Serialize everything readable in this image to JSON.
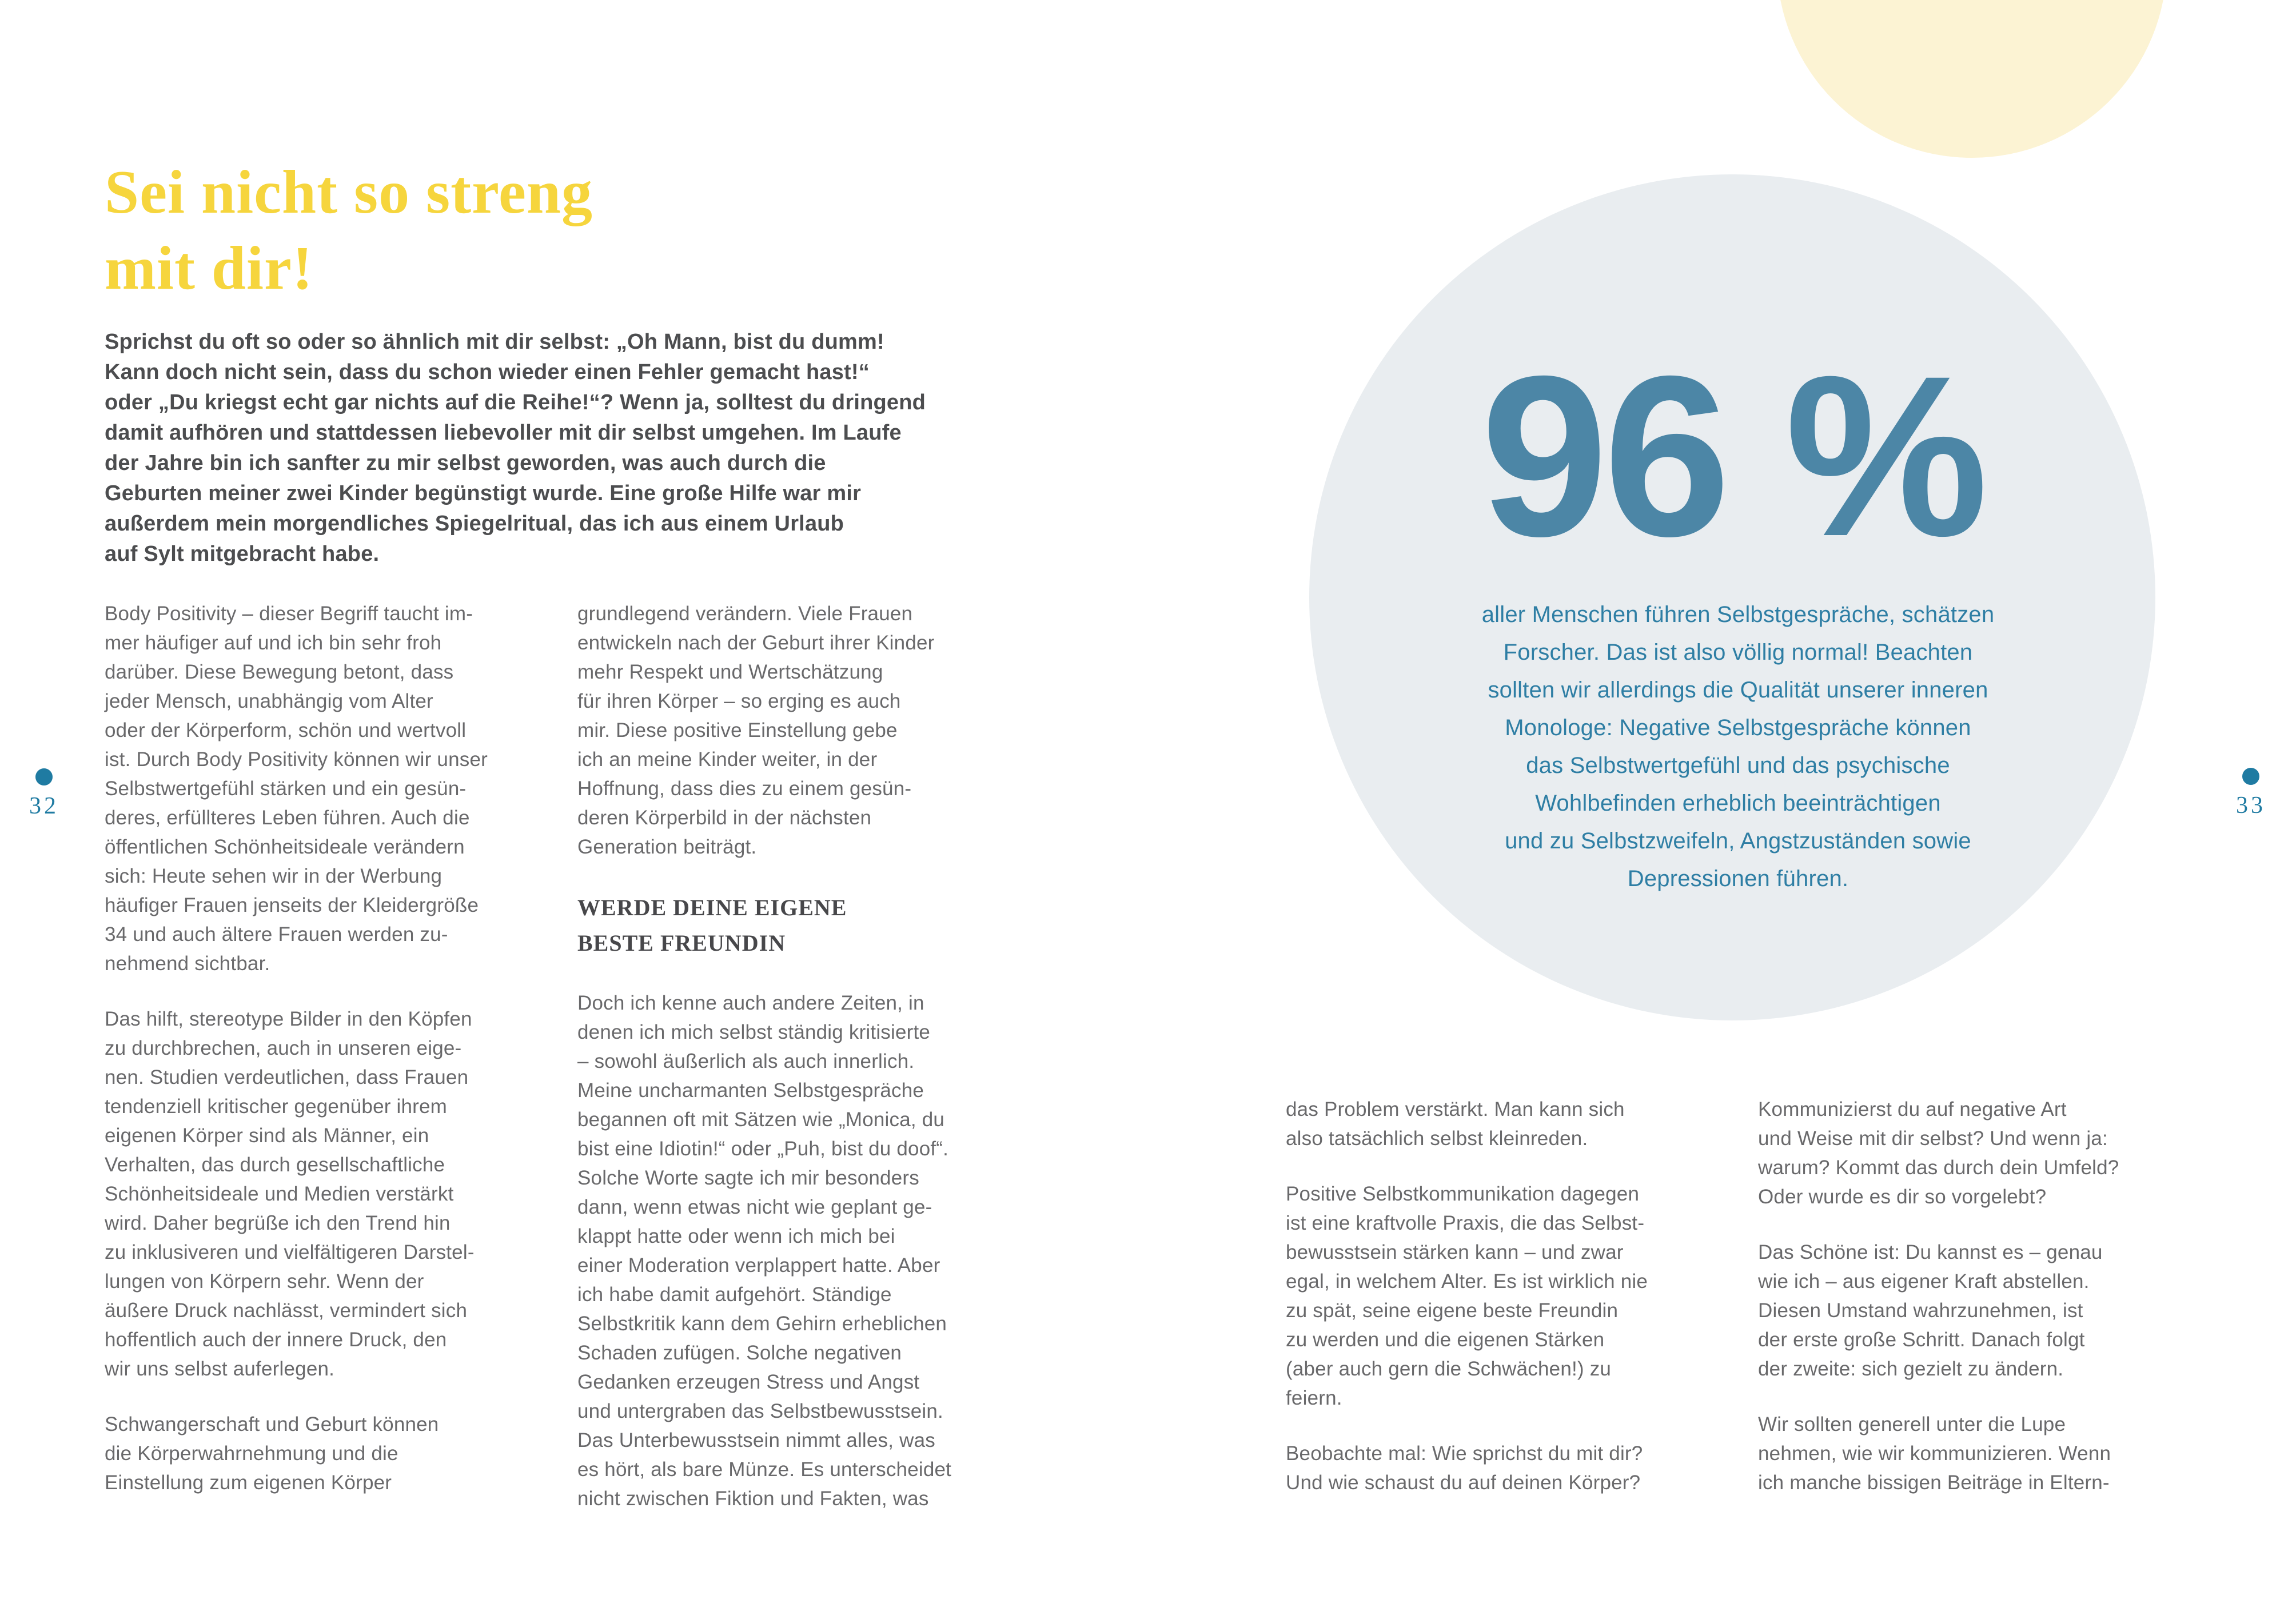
{
  "colors": {
    "heading_yellow": "#F6D53D",
    "pale_yellow_circle": "#FCF3D3",
    "gray_circle": "#E9EDF0",
    "stat_blue": "#4C86A6",
    "teal_text": "#2E7EA4",
    "page_marker_teal": "#1F7BA2",
    "body_text": "#69696B",
    "intro_text": "#4C4D4F",
    "subheading_text": "#47474A"
  },
  "left_page": {
    "page_number": "32",
    "heading": "Sei nicht so streng\nmit dir!",
    "intro": "Sprichst du oft so oder so ähnlich mit dir selbst: „Oh Mann, bist du dumm!\nKann doch nicht sein, dass du schon wieder einen Fehler gemacht hast!“\noder „Du kriegst echt gar nichts auf die Reihe!“? Wenn ja, solltest du dringend\ndamit aufhören und stattdessen liebevoller mit dir selbst umgehen. Im Laufe\nder Jahre bin ich sanfter zu mir selbst geworden, was auch durch die\nGeburten meiner zwei Kinder begünstigt wurde. Eine große Hilfe war mir\naußerdem mein morgendliches Spiegelritual, das ich aus einem Urlaub\nauf Sylt mitgebracht habe.",
    "column1": {
      "para1": "Body Positivity – dieser Begriff taucht im-\nmer häufiger auf und ich bin sehr froh\ndarüber. Diese Bewegung betont, dass\njeder Mensch, unabhängig vom Alter\noder der Körperform, schön und wertvoll\nist. Durch Body Positivity können wir unser\nSelbstwertgefühl stärken und ein gesün-\nderes, erfüllteres Leben führen. Auch die\nöffentlichen Schönheitsideale verändern\nsich: Heute sehen wir in der Werbung\nhäufiger Frauen jenseits der Kleidergröße\n34 und auch ältere Frauen werden zu-\nnehmend sichtbar.",
      "para2": "Das hilft, stereotype Bilder in den Köpfen\nzu durchbrechen, auch in unseren eige-\nnen. Studien verdeutlichen, dass Frauen\ntendenziell kritischer gegenüber ihrem\neigenen Körper sind als Männer, ein\nVerhalten, das durch gesellschaftliche\nSchönheitsideale und Medien verstärkt\nwird. Daher begrüße ich den Trend hin\nzu inklusiveren und vielfältigeren Darstel-\nlungen von Körpern sehr. Wenn der\näußere Druck nachlässt, vermindert sich\nhoffentlich auch der innere Druck, den\nwir uns selbst auferlegen.",
      "para3": "Schwangerschaft und Geburt können\ndie Körperwahrnehmung und die\nEinstellung zum eigenen Körper"
    },
    "column2": {
      "para1": "grundlegend verändern. Viele Frauen\nentwickeln nach der Geburt ihrer Kinder\nmehr Respekt und Wertschätzung\nfür ihren Körper – so erging es auch\nmir. Diese positive Einstellung gebe\nich an meine Kinder weiter, in der\nHoffnung, dass dies zu einem gesün-\nderen Körperbild in der nächsten\nGeneration beiträgt.",
      "subheading": "WERDE DEINE EIGENE\nBESTE FREUNDIN",
      "para2": "Doch ich kenne auch andere Zeiten, in\ndenen ich mich selbst ständig kritisierte\n– sowohl äußerlich als auch innerlich.\nMeine uncharmanten Selbstgespräche\nbegannen oft mit Sätzen wie „Monica, du\nbist eine Idiotin!“ oder „Puh, bist du doof“.\nSolche Worte sagte ich mir besonders\ndann, wenn etwas nicht wie geplant ge-\nklappt hatte oder wenn ich mich bei\neiner Moderation verplappert hatte. Aber\nich habe damit aufgehört. Ständige\nSelbstkritik kann dem Gehirn erheblichen\nSchaden zufügen. Solche negativen\nGedanken erzeugen Stress und Angst\nund untergraben das Selbstbewusstsein.\nDas Unterbewusstsein nimmt alles, was\nes hört, als bare Münze. Es unterscheidet\nnicht zwischen Fiktion und Fakten, was"
    }
  },
  "right_page": {
    "page_number": "33",
    "stat": {
      "value": "96 %",
      "description": "aller Menschen führen Selbstgespräche, schätzen\nForscher. Das ist also völlig normal! Beachten\nsollten wir allerdings die Qualität unserer inneren\nMonologe: Negative Selbstgespräche können\ndas Selbstwertgefühl und das psychische\nWohlbefinden erheblich beeinträchtigen\nund zu Selbstzweifeln, Angstzuständen sowie\nDepressionen führen."
    },
    "column1": {
      "para1": "das Problem verstärkt. Man kann sich\nalso tatsächlich selbst kleinreden.",
      "para2": "Positive Selbstkommunikation dagegen\nist eine kraftvolle Praxis, die das Selbst-\nbewusstsein stärken kann – und zwar\negal, in welchem Alter. Es ist wirklich nie\nzu spät, seine eigene beste Freundin\nzu werden und die eigenen Stärken\n(aber auch gern die Schwächen!) zu\nfeiern.",
      "para3": "Beobachte mal: Wie sprichst du mit dir?\nUnd wie schaust du auf deinen Körper?"
    },
    "column2": {
      "para1": "Kommunizierst du auf negative Art\nund Weise mit dir selbst? Und wenn ja:\nwarum? Kommt das durch dein Umfeld?\nOder wurde es dir so vorgelebt?",
      "para2": "Das Schöne ist: Du kannst es – genau\nwie ich – aus eigener Kraft abstellen.\nDiesen Umstand wahrzunehmen, ist\nder erste große Schritt. Danach folgt\nder zweite: sich gezielt zu ändern.",
      "para3": "Wir sollten generell unter die Lupe\nnehmen, wie wir kommunizieren. Wenn\nich manche bissigen Beiträge in Eltern-"
    }
  }
}
